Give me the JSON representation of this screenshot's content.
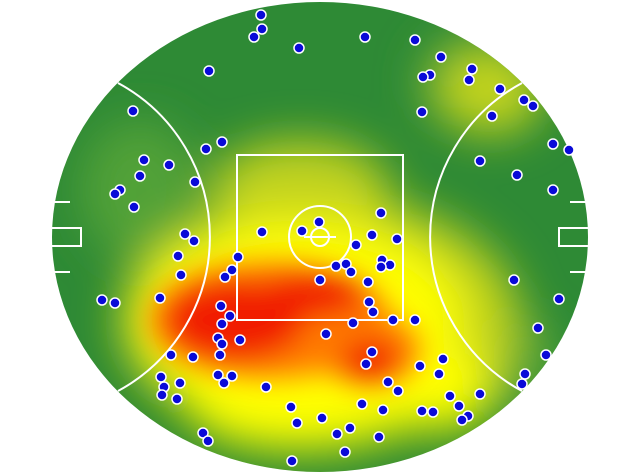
{
  "chart_data": {
    "type": "scatter",
    "title": "",
    "xlabel": "",
    "ylabel": "",
    "background": "heatmap",
    "grid": false,
    "legend": "none",
    "colors": {
      "grass_dark": "#2e8a35",
      "grass_mid": "#5aa83a",
      "heat_low": "#c8d61c",
      "heat_mid": "#ffff00",
      "heat_high": "#ff7a00",
      "heat_peak": "#f01a00",
      "markings": "#ffffff",
      "point_fill": "#0a0ad8",
      "point_edge": "#ffffff"
    },
    "points": [
      [
        261,
        15
      ],
      [
        262,
        29
      ],
      [
        254,
        37
      ],
      [
        299,
        48
      ],
      [
        365,
        37
      ],
      [
        415,
        40
      ],
      [
        441,
        57
      ],
      [
        472,
        69
      ],
      [
        469,
        80
      ],
      [
        430,
        75
      ],
      [
        423,
        77
      ],
      [
        500,
        89
      ],
      [
        524,
        100
      ],
      [
        533,
        106
      ],
      [
        492,
        116
      ],
      [
        422,
        112
      ],
      [
        209,
        71
      ],
      [
        133,
        111
      ],
      [
        222,
        142
      ],
      [
        206,
        149
      ],
      [
        553,
        144
      ],
      [
        569,
        150
      ],
      [
        480,
        161
      ],
      [
        517,
        175
      ],
      [
        553,
        190
      ],
      [
        144,
        160
      ],
      [
        169,
        165
      ],
      [
        140,
        176
      ],
      [
        195,
        182
      ],
      [
        120,
        190
      ],
      [
        115,
        194
      ],
      [
        134,
        207
      ],
      [
        381,
        213
      ],
      [
        319,
        222
      ],
      [
        302,
        231
      ],
      [
        262,
        232
      ],
      [
        185,
        234
      ],
      [
        194,
        241
      ],
      [
        372,
        235
      ],
      [
        397,
        239
      ],
      [
        356,
        245
      ],
      [
        178,
        256
      ],
      [
        238,
        257
      ],
      [
        382,
        260
      ],
      [
        390,
        265
      ],
      [
        381,
        267
      ],
      [
        336,
        266
      ],
      [
        346,
        264
      ],
      [
        351,
        272
      ],
      [
        232,
        270
      ],
      [
        225,
        277
      ],
      [
        181,
        275
      ],
      [
        320,
        280
      ],
      [
        368,
        282
      ],
      [
        514,
        280
      ],
      [
        102,
        300
      ],
      [
        115,
        303
      ],
      [
        160,
        298
      ],
      [
        559,
        299
      ],
      [
        221,
        306
      ],
      [
        369,
        302
      ],
      [
        373,
        312
      ],
      [
        230,
        316
      ],
      [
        222,
        324
      ],
      [
        393,
        320
      ],
      [
        415,
        320
      ],
      [
        353,
        323
      ],
      [
        326,
        334
      ],
      [
        218,
        338
      ],
      [
        222,
        344
      ],
      [
        240,
        340
      ],
      [
        220,
        355
      ],
      [
        193,
        357
      ],
      [
        171,
        355
      ],
      [
        372,
        352
      ],
      [
        538,
        328
      ],
      [
        546,
        355
      ],
      [
        366,
        364
      ],
      [
        420,
        366
      ],
      [
        443,
        359
      ],
      [
        439,
        374
      ],
      [
        525,
        374
      ],
      [
        522,
        384
      ],
      [
        161,
        377
      ],
      [
        180,
        383
      ],
      [
        164,
        387
      ],
      [
        162,
        395
      ],
      [
        177,
        399
      ],
      [
        218,
        375
      ],
      [
        232,
        376
      ],
      [
        224,
        383
      ],
      [
        266,
        387
      ],
      [
        388,
        382
      ],
      [
        398,
        391
      ],
      [
        480,
        394
      ],
      [
        450,
        396
      ],
      [
        459,
        406
      ],
      [
        468,
        416
      ],
      [
        462,
        420
      ],
      [
        433,
        412
      ],
      [
        422,
        411
      ],
      [
        383,
        410
      ],
      [
        362,
        404
      ],
      [
        291,
        407
      ],
      [
        322,
        418
      ],
      [
        297,
        423
      ],
      [
        337,
        434
      ],
      [
        350,
        428
      ],
      [
        379,
        437
      ],
      [
        345,
        452
      ],
      [
        203,
        433
      ],
      [
        208,
        441
      ],
      [
        292,
        461
      ]
    ]
  }
}
